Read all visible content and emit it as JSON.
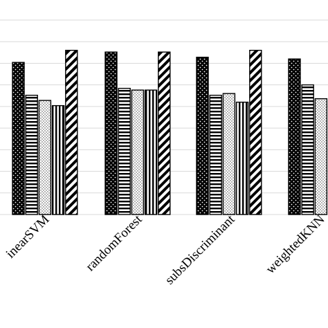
{
  "chart_data": {
    "type": "bar",
    "categories": [
      "linearSVM",
      "randomForest",
      "subsDiscriminant",
      "weightedKNN"
    ],
    "visible_category_text": [
      "inearSVM",
      "randomForest",
      "subsDiscriminant",
      "weightedKNN"
    ],
    "series": [
      {
        "pattern": "black-dots",
        "values": [
          0.88,
          0.94,
          0.91,
          0.9
        ]
      },
      {
        "pattern": "horizontal-stripes",
        "values": [
          0.69,
          0.73,
          0.69,
          0.75
        ]
      },
      {
        "pattern": "light-dots",
        "values": [
          0.66,
          0.72,
          0.7,
          0.67
        ]
      },
      {
        "pattern": "vertical-stripes",
        "values": [
          0.63,
          0.72,
          0.65,
          null
        ]
      },
      {
        "pattern": "diagonal-stripes",
        "values": [
          0.95,
          0.94,
          0.95,
          null
        ]
      }
    ],
    "ylim": [
      0,
      1.1
    ],
    "y_gridlines": [
      0.125,
      0.25,
      0.375,
      0.5,
      0.625,
      0.75,
      0.875,
      1.0,
      1.125
    ],
    "grid": true,
    "legend": "none",
    "colors": {
      "bar_fill": "#000000",
      "bar_background": "#ffffff",
      "grid": "#d9d9d9"
    }
  }
}
